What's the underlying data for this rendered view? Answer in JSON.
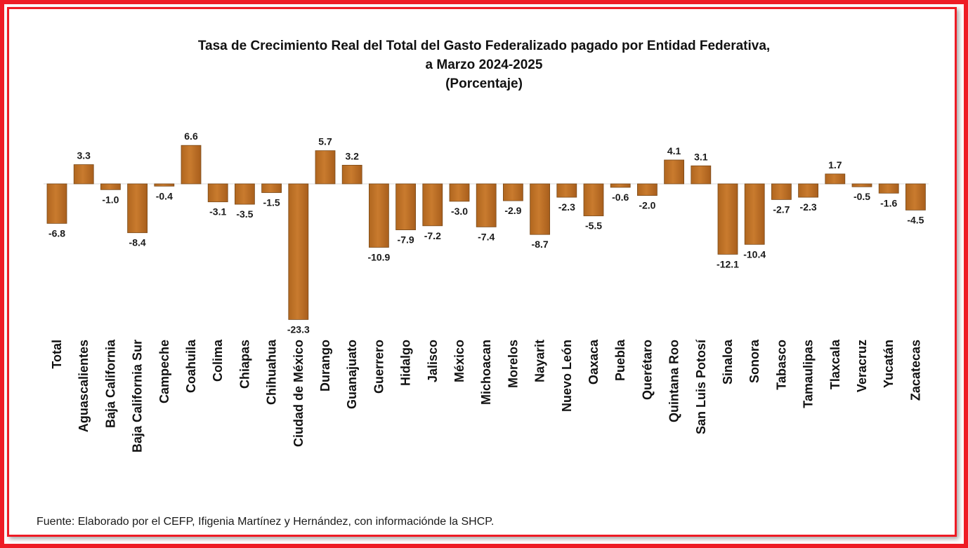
{
  "chart_data": {
    "type": "bar",
    "title": "Tasa de Crecimiento Real del Total del Gasto Federalizado pagado por Entidad Federativa,",
    "subtitle": "a Marzo 2024-2025",
    "unit_label": "(Porcentaje)",
    "xlabel": "",
    "ylabel": "",
    "categories": [
      "Total",
      "Aguascalientes",
      "Baja California",
      "Baja California Sur",
      "Campeche",
      "Coahuila",
      "Colima",
      "Chiapas",
      "Chihuahua",
      "Ciudad de México",
      "Durango",
      "Guanajuato",
      "Guerrero",
      "Hidalgo",
      "Jalisco",
      "México",
      "Michoacan",
      "Morelos",
      "Nayarit",
      "Nuevo León",
      "Oaxaca",
      "Puebla",
      "Querétaro",
      "Quintana Roo",
      "San Luis Potosí",
      "Sinaloa",
      "Sonora",
      "Tabasco",
      "Tamaulipas",
      "Tlaxcala",
      "Veracruz",
      "Yucatán",
      "Zacatecas"
    ],
    "values": [
      -6.8,
      3.3,
      -1.0,
      -8.4,
      -0.4,
      6.6,
      -3.1,
      -3.5,
      -1.5,
      -23.3,
      5.7,
      3.2,
      -10.9,
      -7.9,
      -7.2,
      -3.0,
      -7.4,
      -2.9,
      -8.7,
      -2.3,
      -5.5,
      -0.6,
      -2.0,
      4.1,
      3.1,
      -12.1,
      -10.4,
      -2.7,
      -2.3,
      1.7,
      -0.5,
      -1.6,
      -4.5
    ],
    "data_labels": [
      "-6.8",
      "3.3",
      "-1.0",
      "-8.4",
      "-0.4",
      "6.6",
      "-3.1",
      "-3.5",
      "-1.5",
      "-23.3",
      "5.7",
      "3.2",
      "-10.9",
      "-7.9",
      "-7.2",
      "-3.0",
      "-7.4",
      "-2.9",
      "-8.7",
      "-2.3",
      "-5.5",
      "-0.6",
      "-2.0",
      "4.1",
      "3.1",
      "-12.1",
      "-10.4",
      "-2.7",
      "-2.3",
      "1.7",
      "-0.5",
      "-1.6",
      "-4.5"
    ],
    "bar_color": "#c97b2e",
    "grid": false,
    "legend": "none"
  },
  "source": "Fuente: Elaborado por el CEFP, Ifigenia Martínez y Hernández, con informaciónde la SHCP.",
  "colors": {
    "frame": "#ee1c25",
    "bar": "#c97b2e",
    "bar_edge": "#7a4a1a"
  }
}
